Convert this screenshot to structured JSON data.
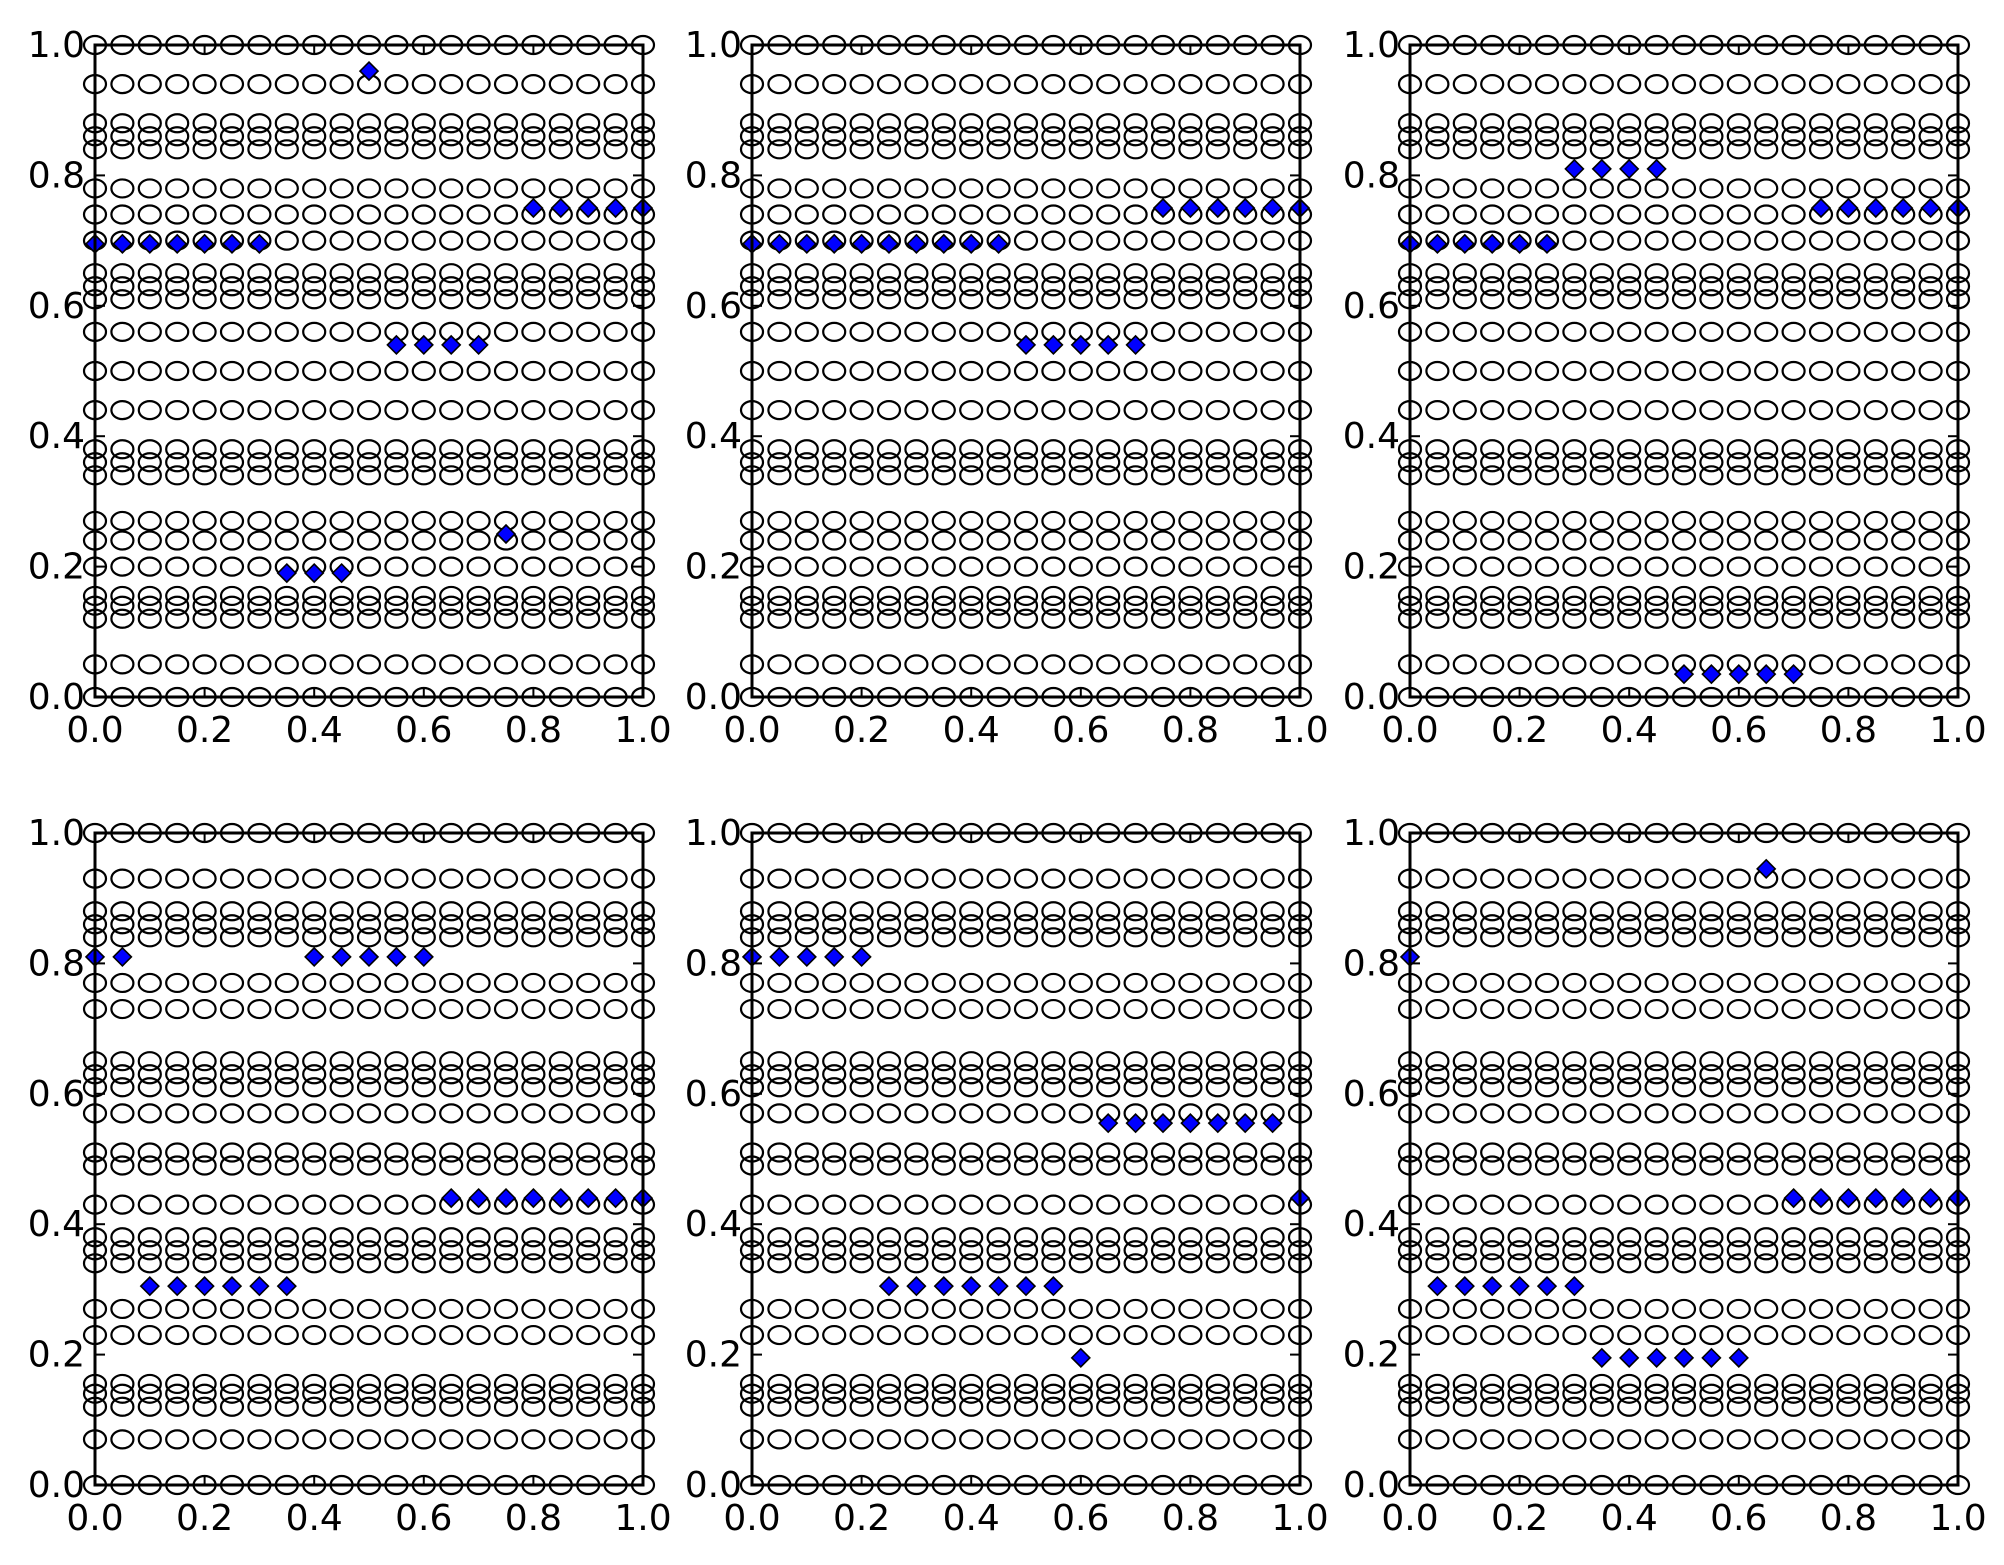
{
  "figure": {
    "layout": "2x3 grid of scatter subplots",
    "background": "#ffffff"
  },
  "style": {
    "marker_edge_color": "#000000",
    "marker_face_open": "#ffffff",
    "highlight_color": "#0000ff",
    "highlight_edge_color": "#000000"
  },
  "chart_data": [
    {
      "type": "scatter",
      "title": "",
      "xlabel": "",
      "ylabel": "",
      "xlim": [
        0,
        1
      ],
      "ylim": [
        0,
        1
      ],
      "x_ticks": [
        "0.0",
        "0.2",
        "0.4",
        "0.6",
        "0.8",
        "1.0"
      ],
      "y_ticks": [
        "0.0",
        "0.2",
        "0.4",
        "0.6",
        "0.8",
        "1.0"
      ],
      "grid": false,
      "x": [
        0,
        0.05,
        0.1,
        0.15,
        0.2,
        0.25,
        0.3,
        0.35,
        0.4,
        0.45,
        0.5,
        0.55,
        0.6,
        0.65,
        0.7,
        0.75,
        0.8,
        0.85,
        0.9,
        0.95,
        1.0
      ],
      "circle_rows_y": [
        0.0,
        0.05,
        0.12,
        0.14,
        0.155,
        0.2,
        0.24,
        0.27,
        0.34,
        0.36,
        0.38,
        0.44,
        0.5,
        0.56,
        0.61,
        0.63,
        0.65,
        0.7,
        0.74,
        0.78,
        0.84,
        0.86,
        0.88,
        0.94,
        1.0
      ],
      "highlight_series": [
        {
          "name": "group-1",
          "x": [
            0.0,
            0.05,
            0.1,
            0.15,
            0.2,
            0.25,
            0.3
          ],
          "y": [
            0.695,
            0.695,
            0.695,
            0.695,
            0.695,
            0.695,
            0.695
          ]
        },
        {
          "name": "group-2",
          "x": [
            0.5
          ],
          "y": [
            0.96
          ]
        },
        {
          "name": "group-3",
          "x": [
            0.55,
            0.6,
            0.65,
            0.7
          ],
          "y": [
            0.54,
            0.54,
            0.54,
            0.54
          ]
        },
        {
          "name": "group-4",
          "x": [
            0.8,
            0.85,
            0.9,
            0.95,
            1.0
          ],
          "y": [
            0.75,
            0.75,
            0.75,
            0.75,
            0.75
          ]
        },
        {
          "name": "group-5",
          "x": [
            0.35,
            0.4,
            0.45
          ],
          "y": [
            0.19,
            0.19,
            0.19
          ]
        },
        {
          "name": "group-6",
          "x": [
            0.75
          ],
          "y": [
            0.25
          ]
        }
      ]
    },
    {
      "type": "scatter",
      "title": "",
      "xlabel": "",
      "ylabel": "",
      "xlim": [
        0,
        1
      ],
      "ylim": [
        0,
        1
      ],
      "x_ticks": [
        "0.0",
        "0.2",
        "0.4",
        "0.6",
        "0.8",
        "1.0"
      ],
      "y_ticks": [
        "0.0",
        "0.2",
        "0.4",
        "0.6",
        "0.8",
        "1.0"
      ],
      "grid": false,
      "x": [
        0,
        0.05,
        0.1,
        0.15,
        0.2,
        0.25,
        0.3,
        0.35,
        0.4,
        0.45,
        0.5,
        0.55,
        0.6,
        0.65,
        0.7,
        0.75,
        0.8,
        0.85,
        0.9,
        0.95,
        1.0
      ],
      "circle_rows_y": [
        0.0,
        0.05,
        0.12,
        0.14,
        0.155,
        0.2,
        0.24,
        0.27,
        0.34,
        0.36,
        0.38,
        0.44,
        0.5,
        0.56,
        0.61,
        0.63,
        0.65,
        0.7,
        0.74,
        0.78,
        0.84,
        0.86,
        0.88,
        0.94,
        1.0
      ],
      "highlight_series": [
        {
          "name": "group-1",
          "x": [
            0.0,
            0.05,
            0.1,
            0.15,
            0.2,
            0.25,
            0.3,
            0.35,
            0.4,
            0.45
          ],
          "y": [
            0.695,
            0.695,
            0.695,
            0.695,
            0.695,
            0.695,
            0.695,
            0.695,
            0.695,
            0.695
          ]
        },
        {
          "name": "group-2",
          "x": [
            0.5,
            0.55,
            0.6,
            0.65,
            0.7
          ],
          "y": [
            0.54,
            0.54,
            0.54,
            0.54,
            0.54
          ]
        },
        {
          "name": "group-3",
          "x": [
            0.75,
            0.8,
            0.85,
            0.9,
            0.95,
            1.0
          ],
          "y": [
            0.75,
            0.75,
            0.75,
            0.75,
            0.75,
            0.75
          ]
        }
      ]
    },
    {
      "type": "scatter",
      "title": "",
      "xlabel": "",
      "ylabel": "",
      "xlim": [
        0,
        1
      ],
      "ylim": [
        0,
        1
      ],
      "x_ticks": [
        "0.0",
        "0.2",
        "0.4",
        "0.6",
        "0.8",
        "1.0"
      ],
      "y_ticks": [
        "0.0",
        "0.2",
        "0.4",
        "0.6",
        "0.8",
        "1.0"
      ],
      "grid": false,
      "x": [
        0,
        0.05,
        0.1,
        0.15,
        0.2,
        0.25,
        0.3,
        0.35,
        0.4,
        0.45,
        0.5,
        0.55,
        0.6,
        0.65,
        0.7,
        0.75,
        0.8,
        0.85,
        0.9,
        0.95,
        1.0
      ],
      "circle_rows_y": [
        0.0,
        0.05,
        0.12,
        0.14,
        0.155,
        0.2,
        0.24,
        0.27,
        0.34,
        0.36,
        0.38,
        0.44,
        0.5,
        0.56,
        0.61,
        0.63,
        0.65,
        0.7,
        0.74,
        0.78,
        0.84,
        0.86,
        0.88,
        0.94,
        1.0
      ],
      "highlight_series": [
        {
          "name": "group-1",
          "x": [
            0.0,
            0.05,
            0.1,
            0.15,
            0.2,
            0.25
          ],
          "y": [
            0.695,
            0.695,
            0.695,
            0.695,
            0.695,
            0.695
          ]
        },
        {
          "name": "group-2",
          "x": [
            0.3,
            0.35,
            0.4,
            0.45
          ],
          "y": [
            0.81,
            0.81,
            0.81,
            0.81
          ]
        },
        {
          "name": "group-3",
          "x": [
            0.5,
            0.55,
            0.6,
            0.65,
            0.7
          ],
          "y": [
            0.035,
            0.035,
            0.035,
            0.035,
            0.035
          ]
        },
        {
          "name": "group-4",
          "x": [
            0.75,
            0.8,
            0.85,
            0.9,
            0.95,
            1.0
          ],
          "y": [
            0.75,
            0.75,
            0.75,
            0.75,
            0.75,
            0.75
          ]
        }
      ]
    },
    {
      "type": "scatter",
      "title": "",
      "xlabel": "",
      "ylabel": "",
      "xlim": [
        0,
        1
      ],
      "ylim": [
        0,
        1
      ],
      "x_ticks": [
        "0.0",
        "0.2",
        "0.4",
        "0.6",
        "0.8",
        "1.0"
      ],
      "y_ticks": [
        "0.0",
        "0.2",
        "0.4",
        "0.6",
        "0.8",
        "1.0"
      ],
      "grid": false,
      "x": [
        0,
        0.05,
        0.1,
        0.15,
        0.2,
        0.25,
        0.3,
        0.35,
        0.4,
        0.45,
        0.5,
        0.55,
        0.6,
        0.65,
        0.7,
        0.75,
        0.8,
        0.85,
        0.9,
        0.95,
        1.0
      ],
      "circle_rows_y": [
        0.0,
        0.07,
        0.12,
        0.14,
        0.155,
        0.23,
        0.27,
        0.34,
        0.36,
        0.38,
        0.43,
        0.49,
        0.51,
        0.57,
        0.61,
        0.63,
        0.65,
        0.73,
        0.77,
        0.84,
        0.86,
        0.88,
        0.93,
        1.0
      ],
      "highlight_series": [
        {
          "name": "group-1",
          "x": [
            0.0,
            0.05
          ],
          "y": [
            0.81,
            0.81
          ]
        },
        {
          "name": "group-2",
          "x": [
            0.4,
            0.45,
            0.5,
            0.55,
            0.6
          ],
          "y": [
            0.81,
            0.81,
            0.81,
            0.81,
            0.81
          ]
        },
        {
          "name": "group-3",
          "x": [
            0.65,
            0.7,
            0.75,
            0.8,
            0.85,
            0.9,
            0.95,
            1.0
          ],
          "y": [
            0.44,
            0.44,
            0.44,
            0.44,
            0.44,
            0.44,
            0.44,
            0.44
          ]
        },
        {
          "name": "group-4",
          "x": [
            0.1,
            0.15,
            0.2,
            0.25,
            0.3,
            0.35
          ],
          "y": [
            0.305,
            0.305,
            0.305,
            0.305,
            0.305,
            0.305
          ]
        }
      ]
    },
    {
      "type": "scatter",
      "title": "",
      "xlabel": "",
      "ylabel": "",
      "xlim": [
        0,
        1
      ],
      "ylim": [
        0,
        1
      ],
      "x_ticks": [
        "0.0",
        "0.2",
        "0.4",
        "0.6",
        "0.8",
        "1.0"
      ],
      "y_ticks": [
        "0.0",
        "0.2",
        "0.4",
        "0.6",
        "0.8",
        "1.0"
      ],
      "grid": false,
      "x": [
        0,
        0.05,
        0.1,
        0.15,
        0.2,
        0.25,
        0.3,
        0.35,
        0.4,
        0.45,
        0.5,
        0.55,
        0.6,
        0.65,
        0.7,
        0.75,
        0.8,
        0.85,
        0.9,
        0.95,
        1.0
      ],
      "circle_rows_y": [
        0.0,
        0.07,
        0.12,
        0.14,
        0.155,
        0.23,
        0.27,
        0.34,
        0.36,
        0.38,
        0.43,
        0.49,
        0.51,
        0.57,
        0.61,
        0.63,
        0.65,
        0.73,
        0.77,
        0.84,
        0.86,
        0.88,
        0.93,
        1.0
      ],
      "highlight_series": [
        {
          "name": "group-1",
          "x": [
            0.0,
            0.05,
            0.1,
            0.15,
            0.2
          ],
          "y": [
            0.81,
            0.81,
            0.81,
            0.81,
            0.81
          ]
        },
        {
          "name": "group-2",
          "x": [
            0.65,
            0.7,
            0.75,
            0.8,
            0.85,
            0.9,
            0.95
          ],
          "y": [
            0.555,
            0.555,
            0.555,
            0.555,
            0.555,
            0.555,
            0.555
          ]
        },
        {
          "name": "group-3",
          "x": [
            1.0
          ],
          "y": [
            0.44
          ]
        },
        {
          "name": "group-4",
          "x": [
            0.25,
            0.3,
            0.35,
            0.4,
            0.45,
            0.5,
            0.55
          ],
          "y": [
            0.305,
            0.305,
            0.305,
            0.305,
            0.305,
            0.305,
            0.305
          ]
        },
        {
          "name": "group-5",
          "x": [
            0.6
          ],
          "y": [
            0.195
          ]
        }
      ]
    },
    {
      "type": "scatter",
      "title": "",
      "xlabel": "",
      "ylabel": "",
      "xlim": [
        0,
        1
      ],
      "ylim": [
        0,
        1
      ],
      "x_ticks": [
        "0.0",
        "0.2",
        "0.4",
        "0.6",
        "0.8",
        "1.0"
      ],
      "y_ticks": [
        "0.0",
        "0.2",
        "0.4",
        "0.6",
        "0.8",
        "1.0"
      ],
      "grid": false,
      "x": [
        0,
        0.05,
        0.1,
        0.15,
        0.2,
        0.25,
        0.3,
        0.35,
        0.4,
        0.45,
        0.5,
        0.55,
        0.6,
        0.65,
        0.7,
        0.75,
        0.8,
        0.85,
        0.9,
        0.95,
        1.0
      ],
      "circle_rows_y": [
        0.0,
        0.07,
        0.12,
        0.14,
        0.155,
        0.23,
        0.27,
        0.34,
        0.36,
        0.38,
        0.43,
        0.49,
        0.51,
        0.57,
        0.61,
        0.63,
        0.65,
        0.73,
        0.77,
        0.84,
        0.86,
        0.88,
        0.93,
        1.0
      ],
      "highlight_series": [
        {
          "name": "group-1",
          "x": [
            0.0
          ],
          "y": [
            0.81
          ]
        },
        {
          "name": "group-2",
          "x": [
            0.65
          ],
          "y": [
            0.945
          ]
        },
        {
          "name": "group-3",
          "x": [
            0.7,
            0.75,
            0.8,
            0.85,
            0.9,
            0.95,
            1.0
          ],
          "y": [
            0.44,
            0.44,
            0.44,
            0.44,
            0.44,
            0.44,
            0.44
          ]
        },
        {
          "name": "group-4",
          "x": [
            0.05,
            0.1,
            0.15,
            0.2,
            0.25,
            0.3
          ],
          "y": [
            0.305,
            0.305,
            0.305,
            0.305,
            0.305,
            0.305
          ]
        },
        {
          "name": "group-5",
          "x": [
            0.35,
            0.4,
            0.45,
            0.5,
            0.55,
            0.6
          ],
          "y": [
            0.195,
            0.195,
            0.195,
            0.195,
            0.195,
            0.195
          ]
        }
      ]
    }
  ]
}
